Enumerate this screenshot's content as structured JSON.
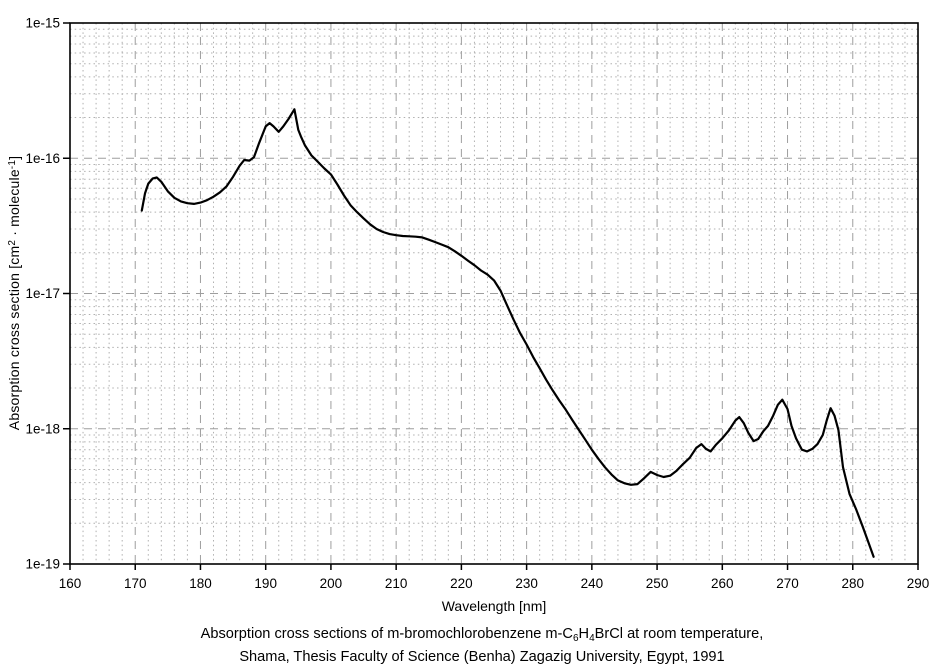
{
  "caption": {
    "line1_parts": [
      "Absorption cross sections of m-bromochlorobenzene m-C",
      "6",
      "H",
      "4",
      "BrCl at room temperature,",
      ""
    ],
    "line2": "Shama, Thesis Faculty of Science (Benha) Zagazig University, Egypt, 1991"
  },
  "chart_data": {
    "type": "line",
    "title": "",
    "xlabel": "Wavelength [nm]",
    "ylabel": "Absorption cross section [cm2 · molecule-1]",
    "ylabel_parts": [
      "Absorption cross section [cm",
      "2",
      " · molecule",
      "-1",
      "]"
    ],
    "x_unit": "nm",
    "y_scale": "log",
    "xlim": [
      160,
      290
    ],
    "ylim": [
      1e-19,
      1e-15
    ],
    "x_tick_values": [
      160,
      170,
      180,
      190,
      200,
      210,
      220,
      230,
      240,
      250,
      260,
      270,
      280,
      290
    ],
    "x_tick_labels": [
      "160",
      "170",
      "180",
      "190",
      "200",
      "210",
      "220",
      "230",
      "240",
      "250",
      "260",
      "270",
      "280",
      "290"
    ],
    "y_tick_values": [
      1e-15,
      1e-16,
      1e-17,
      1e-18,
      1e-19
    ],
    "y_tick_labels": [
      "1e-15",
      "1e-16",
      "1e-17",
      "1e-18",
      "1e-19"
    ],
    "x_minor_step": 2,
    "grid": {
      "major_style": "long-dash",
      "minor_style": "dotted",
      "minor_log_subdivisions": true
    },
    "legend": null,
    "colors": {
      "curve": "#000000",
      "frame": "#000000",
      "grid_major": "#9e9e9e",
      "grid_minor": "#b0b0b0",
      "background": "#ffffff"
    },
    "series": [
      {
        "name": "m-C6H4BrCl absorption cross section (Shama 1991)",
        "points": [
          [
            171.0,
            4.1e-17
          ],
          [
            171.5,
            5.5e-17
          ],
          [
            172.0,
            6.5e-17
          ],
          [
            172.7,
            7.1e-17
          ],
          [
            173.3,
            7.2e-17
          ],
          [
            174.0,
            6.7e-17
          ],
          [
            175.0,
            5.7e-17
          ],
          [
            176.0,
            5.1e-17
          ],
          [
            177.0,
            4.8e-17
          ],
          [
            178.0,
            4.65e-17
          ],
          [
            179.0,
            4.6e-17
          ],
          [
            180.0,
            4.7e-17
          ],
          [
            181.0,
            4.9e-17
          ],
          [
            182.0,
            5.2e-17
          ],
          [
            183.0,
            5.6e-17
          ],
          [
            184.0,
            6.2e-17
          ],
          [
            185.0,
            7.3e-17
          ],
          [
            186.0,
            8.8e-17
          ],
          [
            186.7,
            9.7e-17
          ],
          [
            187.5,
            9.6e-17
          ],
          [
            188.2,
            1.02e-16
          ],
          [
            189.0,
            1.3e-16
          ],
          [
            190.0,
            1.72e-16
          ],
          [
            190.6,
            1.82e-16
          ],
          [
            191.2,
            1.72e-16
          ],
          [
            192.0,
            1.57e-16
          ],
          [
            192.7,
            1.72e-16
          ],
          [
            193.5,
            1.95e-16
          ],
          [
            194.4,
            2.3e-16
          ],
          [
            195.0,
            1.62e-16
          ],
          [
            195.4,
            1.45e-16
          ],
          [
            196.0,
            1.25e-16
          ],
          [
            197.0,
            1.05e-16
          ],
          [
            198.0,
            9.4e-17
          ],
          [
            199.0,
            8.4e-17
          ],
          [
            200.0,
            7.6e-17
          ],
          [
            201.0,
            6.4e-17
          ],
          [
            202.0,
            5.3e-17
          ],
          [
            203.0,
            4.5e-17
          ],
          [
            204.0,
            4e-17
          ],
          [
            205.0,
            3.6e-17
          ],
          [
            206.0,
            3.25e-17
          ],
          [
            207.0,
            3e-17
          ],
          [
            208.0,
            2.85e-17
          ],
          [
            209.0,
            2.75e-17
          ],
          [
            210.0,
            2.7e-17
          ],
          [
            211.0,
            2.66e-17
          ],
          [
            212.0,
            2.65e-17
          ],
          [
            213.0,
            2.63e-17
          ],
          [
            214.0,
            2.6e-17
          ],
          [
            215.0,
            2.5e-17
          ],
          [
            216.0,
            2.4e-17
          ],
          [
            217.0,
            2.3e-17
          ],
          [
            218.0,
            2.2e-17
          ],
          [
            219.0,
            2.05e-17
          ],
          [
            220.0,
            1.9e-17
          ],
          [
            221.0,
            1.75e-17
          ],
          [
            222.0,
            1.62e-17
          ],
          [
            223.0,
            1.48e-17
          ],
          [
            224.0,
            1.38e-17
          ],
          [
            225.0,
            1.25e-17
          ],
          [
            226.0,
            1.05e-17
          ],
          [
            227.0,
            8.2e-18
          ],
          [
            228.0,
            6.4e-18
          ],
          [
            229.0,
            5.1e-18
          ],
          [
            230.0,
            4.2e-18
          ],
          [
            231.0,
            3.4e-18
          ],
          [
            232.0,
            2.8e-18
          ],
          [
            233.0,
            2.3e-18
          ],
          [
            234.0,
            1.92e-18
          ],
          [
            235.0,
            1.62e-18
          ],
          [
            236.0,
            1.38e-18
          ],
          [
            237.0,
            1.16e-18
          ],
          [
            238.0,
            9.8e-19
          ],
          [
            239.0,
            8.3e-19
          ],
          [
            240.0,
            7e-19
          ],
          [
            241.0,
            6e-19
          ],
          [
            242.0,
            5.2e-19
          ],
          [
            243.0,
            4.6e-19
          ],
          [
            244.0,
            4.15e-19
          ],
          [
            245.0,
            3.95e-19
          ],
          [
            246.0,
            3.85e-19
          ],
          [
            247.0,
            3.9e-19
          ],
          [
            248.0,
            4.3e-19
          ],
          [
            249.0,
            4.8e-19
          ],
          [
            250.0,
            4.55e-19
          ],
          [
            251.0,
            4.4e-19
          ],
          [
            252.0,
            4.5e-19
          ],
          [
            253.0,
            4.9e-19
          ],
          [
            254.0,
            5.5e-19
          ],
          [
            255.0,
            6.1e-19
          ],
          [
            256.0,
            7.2e-19
          ],
          [
            256.8,
            7.7e-19
          ],
          [
            257.5,
            7.1e-19
          ],
          [
            258.2,
            6.8e-19
          ],
          [
            259.0,
            7.6e-19
          ],
          [
            260.0,
            8.5e-19
          ],
          [
            261.0,
            9.7e-19
          ],
          [
            262.0,
            1.15e-18
          ],
          [
            262.6,
            1.22e-18
          ],
          [
            263.3,
            1.1e-18
          ],
          [
            264.0,
            9.3e-19
          ],
          [
            264.8,
            8.1e-19
          ],
          [
            265.5,
            8.4e-19
          ],
          [
            266.3,
            9.6e-19
          ],
          [
            267.0,
            1.05e-18
          ],
          [
            267.8,
            1.25e-18
          ],
          [
            268.5,
            1.5e-18
          ],
          [
            269.2,
            1.64e-18
          ],
          [
            270.0,
            1.4e-18
          ],
          [
            270.6,
            1.05e-18
          ],
          [
            271.3,
            8.5e-19
          ],
          [
            272.2,
            7e-19
          ],
          [
            273.0,
            6.8e-19
          ],
          [
            273.8,
            7.1e-19
          ],
          [
            274.6,
            7.7e-19
          ],
          [
            275.4,
            9e-19
          ],
          [
            276.0,
            1.15e-18
          ],
          [
            276.6,
            1.42e-18
          ],
          [
            277.2,
            1.25e-18
          ],
          [
            277.8,
            9.8e-19
          ],
          [
            278.5,
            5.2e-19
          ],
          [
            279.5,
            3.3e-19
          ],
          [
            280.5,
            2.55e-19
          ],
          [
            281.5,
            1.9e-19
          ],
          [
            282.5,
            1.4e-19
          ],
          [
            283.2,
            1.13e-19
          ]
        ]
      }
    ]
  }
}
